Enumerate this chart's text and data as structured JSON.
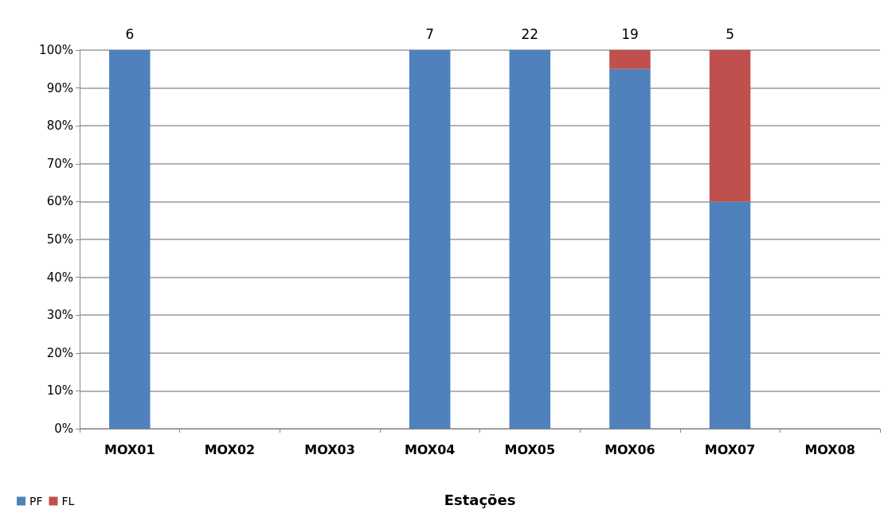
{
  "chart_data": {
    "type": "bar",
    "stacked": true,
    "xlabel": "Estações",
    "categories": [
      "MOX01",
      "MOX02",
      "MOX03",
      "MOX04",
      "MOX05",
      "MOX06",
      "MOX07",
      "MOX08"
    ],
    "series": [
      {
        "name": "PF",
        "color": "#4f81bd",
        "values": [
          100,
          null,
          null,
          100,
          100,
          95,
          60,
          null
        ]
      },
      {
        "name": "FL",
        "color": "#c0504d",
        "values": [
          null,
          null,
          null,
          null,
          null,
          5,
          40,
          null
        ]
      }
    ],
    "annotations": [
      {
        "text": "6",
        "x": "MOX01",
        "y": 100
      },
      {
        "text": "7",
        "x": "MOX04",
        "y": 100
      },
      {
        "text": "22",
        "x": "MOX05",
        "y": 100
      },
      {
        "text": "19",
        "x": "MOX06",
        "y": 100
      },
      {
        "text": "5",
        "x": "MOX07",
        "y": 100
      }
    ],
    "ylim": [
      0,
      100
    ],
    "yticks": [
      {
        "value": 0,
        "label": "0%"
      },
      {
        "value": 10,
        "label": "10%"
      },
      {
        "value": 20,
        "label": "20%"
      },
      {
        "value": 30,
        "label": "30%"
      },
      {
        "value": 40,
        "label": "40%"
      },
      {
        "value": 50,
        "label": "50%"
      },
      {
        "value": 60,
        "label": "60%"
      },
      {
        "value": 70,
        "label": "70%"
      },
      {
        "value": 80,
        "label": "80%"
      },
      {
        "value": 90,
        "label": "90%"
      },
      {
        "value": 100,
        "label": "100%"
      }
    ],
    "grid": "y",
    "legend": "bottom left"
  }
}
